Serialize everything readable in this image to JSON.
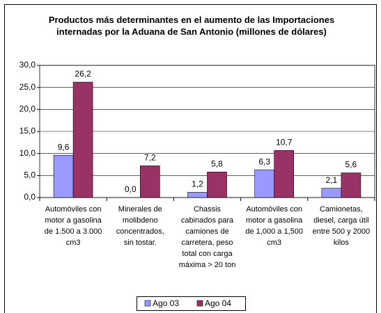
{
  "chart_data": {
    "type": "bar",
    "title": "Productos más determinantes en el aumento de las Importaciones internadas por la Aduana de San Antonio (millones de dólares)",
    "categories": [
      "Automóviles con motor a gasolina de 1.500 a 3.000 cm3",
      "Minerales de molibdeno concentrados, sin tostar.",
      "Chassis cabinados para camiones de carretera, peso total con carga máxima > 20 ton",
      "Automóviles con motor a gasolina de 1,000 a 1,500 cm3",
      "Camionetas, diesel, carga útil entre 500 y 2000 kilos"
    ],
    "series": [
      {
        "name": "Ago 03",
        "color": "#9999ff",
        "values": [
          9.6,
          0.0,
          1.2,
          6.3,
          2.1
        ],
        "value_labels": [
          "9,6",
          "0,0",
          "1,2",
          "6,3",
          "2,1"
        ]
      },
      {
        "name": "Ago 04",
        "color": "#993366",
        "values": [
          26.2,
          7.2,
          5.8,
          10.7,
          5.6
        ],
        "value_labels": [
          "26,2",
          "7,2",
          "5,8",
          "10,7",
          "5,6"
        ]
      }
    ],
    "ylim": [
      0,
      30
    ],
    "yticks": [
      {
        "value": 0,
        "label": "0,0"
      },
      {
        "value": 5,
        "label": "5,0"
      },
      {
        "value": 10,
        "label": "10,0"
      },
      {
        "value": 15,
        "label": "15,0"
      },
      {
        "value": 20,
        "label": "20,0"
      },
      {
        "value": 25,
        "label": "25,0"
      },
      {
        "value": 30,
        "label": "30,0"
      }
    ],
    "grid": true,
    "legend": "bottom"
  }
}
